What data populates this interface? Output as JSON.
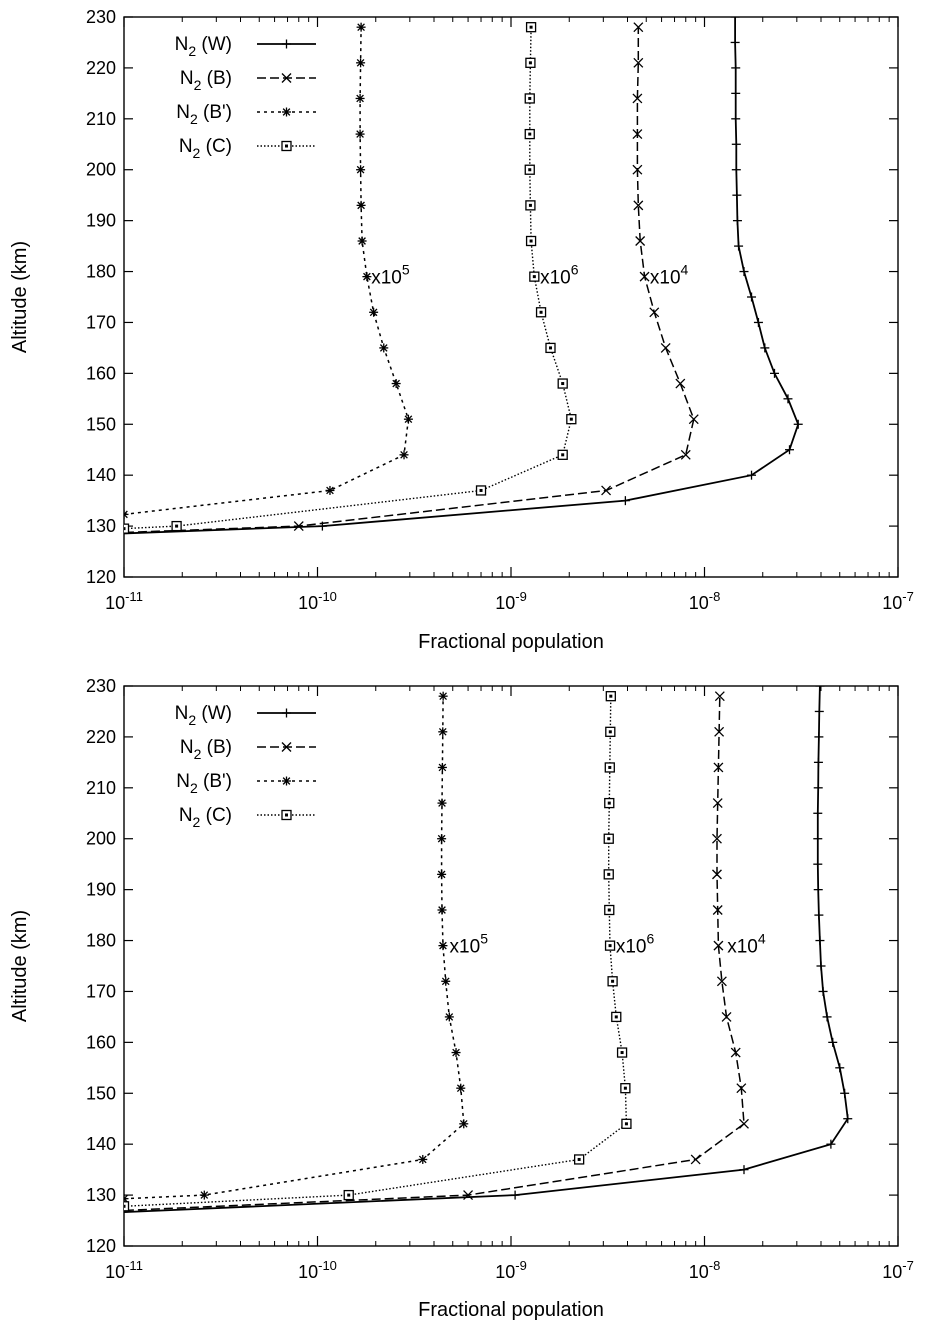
{
  "chart_data": [
    {
      "type": "line",
      "xlabel": "Fractional population",
      "ylabel": "Altitude (km)",
      "xscale": "log",
      "xlim": [
        1e-11,
        1e-07
      ],
      "ylim": [
        120,
        230
      ],
      "xticks": [
        1e-11,
        1e-10,
        1e-09,
        1e-08,
        1e-07
      ],
      "yticks": [
        120,
        130,
        140,
        150,
        160,
        170,
        180,
        190,
        200,
        210,
        220,
        230
      ],
      "grid": false,
      "legend": "top-left",
      "series": [
        {
          "name": "N2 (W)",
          "legend_main": "N",
          "legend_sub": "2",
          "legend_rest": " (W)",
          "dash": "solid",
          "marker": "plus",
          "points": [
            [
              4e-12,
              128
            ],
            [
              1.06e-10,
              130
            ],
            [
              3.9e-09,
              135
            ],
            [
              1.75e-08,
              140
            ],
            [
              2.75e-08,
              145
            ],
            [
              3.05e-08,
              150
            ],
            [
              2.7e-08,
              155
            ],
            [
              2.3e-08,
              160
            ],
            [
              2.05e-08,
              165
            ],
            [
              1.9e-08,
              170
            ],
            [
              1.75e-08,
              175
            ],
            [
              1.6e-08,
              180
            ],
            [
              1.5e-08,
              185
            ],
            [
              1.48e-08,
              190
            ],
            [
              1.47e-08,
              195
            ],
            [
              1.46e-08,
              200
            ],
            [
              1.46e-08,
              205
            ],
            [
              1.45e-08,
              210
            ],
            [
              1.45e-08,
              215
            ],
            [
              1.45e-08,
              220
            ],
            [
              1.44e-08,
              225
            ],
            [
              1.44e-08,
              230
            ]
          ]
        },
        {
          "name": "N2 (B)",
          "legend_main": "N",
          "legend_sub": "2",
          "legend_rest": " (B)",
          "dash": "dashed",
          "marker": "cross",
          "points": [
            [
              4e-12,
              128.2
            ],
            [
              8e-11,
              130
            ],
            [
              3.1e-09,
              137
            ],
            [
              8e-09,
              144
            ],
            [
              8.8e-09,
              151
            ],
            [
              7.5e-09,
              158
            ],
            [
              6.3e-09,
              165
            ],
            [
              5.5e-09,
              172
            ],
            [
              4.9e-09,
              179
            ],
            [
              4.65e-09,
              186
            ],
            [
              4.55e-09,
              193
            ],
            [
              4.5e-09,
              200
            ],
            [
              4.5e-09,
              207
            ],
            [
              4.5e-09,
              214
            ],
            [
              4.55e-09,
              221
            ],
            [
              4.55e-09,
              228
            ]
          ]
        },
        {
          "name": "N2 (B')",
          "legend_main": "N",
          "legend_sub": "2",
          "legend_rest": " (B')",
          "dash": "dotted",
          "marker": "star",
          "points": [
            [
              1e-11,
              132.3
            ],
            [
              1.16e-10,
              137
            ],
            [
              2.8e-10,
              144
            ],
            [
              2.95e-10,
              151
            ],
            [
              2.55e-10,
              158
            ],
            [
              2.2e-10,
              165
            ],
            [
              1.95e-10,
              172
            ],
            [
              1.8e-10,
              179
            ],
            [
              1.7e-10,
              186
            ],
            [
              1.68e-10,
              193
            ],
            [
              1.67e-10,
              200
            ],
            [
              1.66e-10,
              207
            ],
            [
              1.66e-10,
              214
            ],
            [
              1.67e-10,
              221
            ],
            [
              1.68e-10,
              228
            ]
          ]
        },
        {
          "name": "N2 (C)",
          "legend_main": "N",
          "legend_sub": "2",
          "legend_rest": " (C)",
          "dash": "fine-dotted",
          "marker": "square",
          "points": [
            [
              1e-11,
              129.5
            ],
            [
              1.87e-11,
              130
            ],
            [
              7e-10,
              137
            ],
            [
              1.85e-09,
              144
            ],
            [
              2.05e-09,
              151
            ],
            [
              1.85e-09,
              158
            ],
            [
              1.6e-09,
              165
            ],
            [
              1.43e-09,
              172
            ],
            [
              1.32e-09,
              179
            ],
            [
              1.27e-09,
              186
            ],
            [
              1.26e-09,
              193
            ],
            [
              1.25e-09,
              200
            ],
            [
              1.25e-09,
              207
            ],
            [
              1.25e-09,
              214
            ],
            [
              1.26e-09,
              221
            ],
            [
              1.27e-09,
              228
            ]
          ]
        }
      ],
      "annotations": [
        {
          "base": "x10",
          "exp": "5",
          "x": 1.85e-10,
          "y": 179
        },
        {
          "base": "x10",
          "exp": "6",
          "x": 1.38e-09,
          "y": 179
        },
        {
          "base": "x10",
          "exp": "4",
          "x": 5.1e-09,
          "y": 179
        }
      ]
    },
    {
      "type": "line",
      "xlabel": "Fractional population",
      "ylabel": "Altitude (km)",
      "xscale": "log",
      "xlim": [
        1e-11,
        1e-07
      ],
      "ylim": [
        120,
        230
      ],
      "xticks": [
        1e-11,
        1e-10,
        1e-09,
        1e-08,
        1e-07
      ],
      "yticks": [
        120,
        130,
        140,
        150,
        160,
        170,
        180,
        190,
        200,
        210,
        220,
        230
      ],
      "grid": false,
      "legend": "top-left",
      "series": [
        {
          "name": "N2 (W)",
          "legend_main": "N",
          "legend_sub": "2",
          "legend_rest": " (W)",
          "dash": "solid",
          "marker": "plus",
          "points": [
            [
              4e-12,
              126
            ],
            [
              1.05e-09,
              130
            ],
            [
              1.6e-08,
              135
            ],
            [
              4.5e-08,
              140
            ],
            [
              5.5e-08,
              145
            ],
            [
              5.3e-08,
              150
            ],
            [
              5e-08,
              155
            ],
            [
              4.6e-08,
              160
            ],
            [
              4.3e-08,
              165
            ],
            [
              4.1e-08,
              170
            ],
            [
              4e-08,
              175
            ],
            [
              3.95e-08,
              180
            ],
            [
              3.9e-08,
              185
            ],
            [
              3.87e-08,
              190
            ],
            [
              3.85e-08,
              195
            ],
            [
              3.85e-08,
              200
            ],
            [
              3.85e-08,
              205
            ],
            [
              3.87e-08,
              210
            ],
            [
              3.88e-08,
              215
            ],
            [
              3.9e-08,
              220
            ],
            [
              3.92e-08,
              225
            ],
            [
              3.95e-08,
              230
            ]
          ]
        },
        {
          "name": "N2 (B)",
          "legend_main": "N",
          "legend_sub": "2",
          "legend_rest": " (B)",
          "dash": "dashed",
          "marker": "cross",
          "points": [
            [
              4e-12,
              126.3
            ],
            [
              6e-10,
              130
            ],
            [
              9e-09,
              137
            ],
            [
              1.6e-08,
              144
            ],
            [
              1.55e-08,
              151
            ],
            [
              1.45e-08,
              158
            ],
            [
              1.3e-08,
              165
            ],
            [
              1.23e-08,
              172
            ],
            [
              1.18e-08,
              179
            ],
            [
              1.17e-08,
              186
            ],
            [
              1.16e-08,
              193
            ],
            [
              1.16e-08,
              200
            ],
            [
              1.17e-08,
              207
            ],
            [
              1.18e-08,
              214
            ],
            [
              1.19e-08,
              221
            ],
            [
              1.2e-08,
              228
            ]
          ]
        },
        {
          "name": "N2 (B')",
          "legend_main": "N",
          "legend_sub": "2",
          "legend_rest": " (B')",
          "dash": "dotted",
          "marker": "star",
          "points": [
            [
              1e-11,
              129.3
            ],
            [
              2.6e-11,
              130
            ],
            [
              3.5e-10,
              137
            ],
            [
              5.7e-10,
              144
            ],
            [
              5.5e-10,
              151
            ],
            [
              5.2e-10,
              158
            ],
            [
              4.8e-10,
              165
            ],
            [
              4.6e-10,
              172
            ],
            [
              4.45e-10,
              179
            ],
            [
              4.4e-10,
              186
            ],
            [
              4.38e-10,
              193
            ],
            [
              4.38e-10,
              200
            ],
            [
              4.4e-10,
              207
            ],
            [
              4.42e-10,
              214
            ],
            [
              4.44e-10,
              221
            ],
            [
              4.46e-10,
              228
            ]
          ]
        },
        {
          "name": "N2 (C)",
          "legend_main": "N",
          "legend_sub": "2",
          "legend_rest": " (C)",
          "dash": "fine-dotted",
          "marker": "square",
          "points": [
            [
              1e-11,
              127.8
            ],
            [
              1.45e-10,
              130
            ],
            [
              2.25e-09,
              137
            ],
            [
              3.95e-09,
              144
            ],
            [
              3.9e-09,
              151
            ],
            [
              3.75e-09,
              158
            ],
            [
              3.5e-09,
              165
            ],
            [
              3.35e-09,
              172
            ],
            [
              3.25e-09,
              179
            ],
            [
              3.22e-09,
              186
            ],
            [
              3.2e-09,
              193
            ],
            [
              3.2e-09,
              200
            ],
            [
              3.22e-09,
              207
            ],
            [
              3.24e-09,
              214
            ],
            [
              3.26e-09,
              221
            ],
            [
              3.28e-09,
              228
            ]
          ]
        }
      ],
      "annotations": [
        {
          "base": "x10",
          "exp": "5",
          "x": 4.7e-10,
          "y": 179
        },
        {
          "base": "x10",
          "exp": "6",
          "x": 3.4e-09,
          "y": 179
        },
        {
          "base": "x10",
          "exp": "4",
          "x": 1.28e-08,
          "y": 179
        }
      ]
    }
  ]
}
